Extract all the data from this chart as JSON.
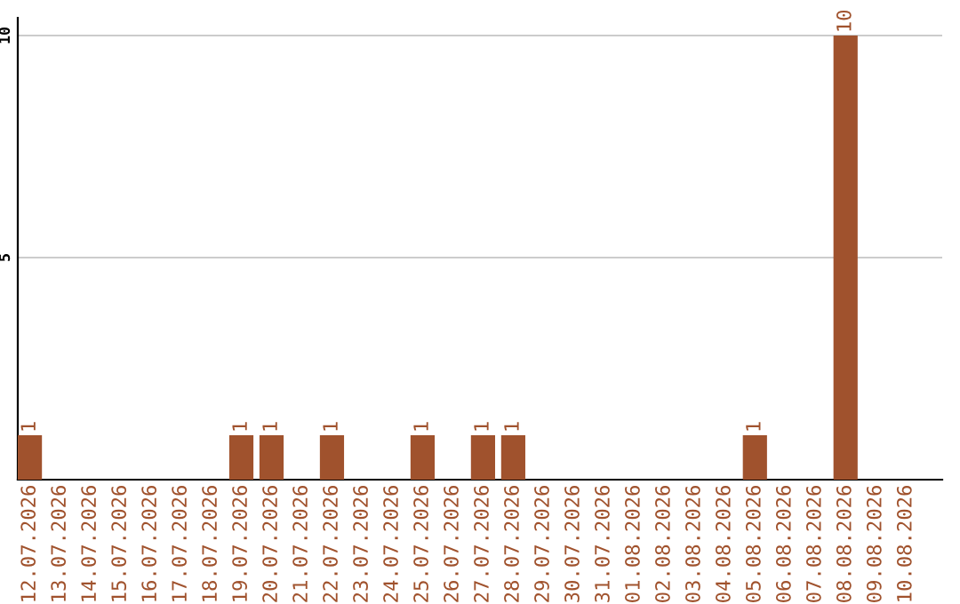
{
  "chart_data": {
    "type": "bar",
    "categories": [
      "12.07.2026",
      "13.07.2026",
      "14.07.2026",
      "15.07.2026",
      "16.07.2026",
      "17.07.2026",
      "18.07.2026",
      "19.07.2026",
      "20.07.2026",
      "21.07.2026",
      "22.07.2026",
      "23.07.2026",
      "24.07.2026",
      "25.07.2026",
      "26.07.2026",
      "27.07.2026",
      "28.07.2026",
      "29.07.2026",
      "30.07.2026",
      "31.07.2026",
      "01.08.2026",
      "02.08.2026",
      "03.08.2026",
      "04.08.2026",
      "05.08.2026",
      "06.08.2026",
      "07.08.2026",
      "08.08.2026",
      "09.08.2026",
      "10.08.2026"
    ],
    "values": [
      1,
      0,
      0,
      0,
      0,
      0,
      0,
      1,
      1,
      0,
      1,
      0,
      0,
      1,
      0,
      1,
      1,
      0,
      0,
      0,
      0,
      0,
      0,
      0,
      1,
      0,
      0,
      10,
      0,
      0
    ],
    "value_labels": [
      "1",
      null,
      null,
      null,
      null,
      null,
      null,
      "1",
      "1",
      null,
      "1",
      null,
      null,
      "1",
      null,
      "1",
      "1",
      null,
      null,
      null,
      null,
      null,
      null,
      null,
      "1",
      null,
      null,
      "10",
      null,
      null
    ],
    "color": "#a0522d",
    "ylim": [
      0,
      10.4
    ],
    "yticks": [
      5,
      10
    ],
    "grid": "y"
  }
}
